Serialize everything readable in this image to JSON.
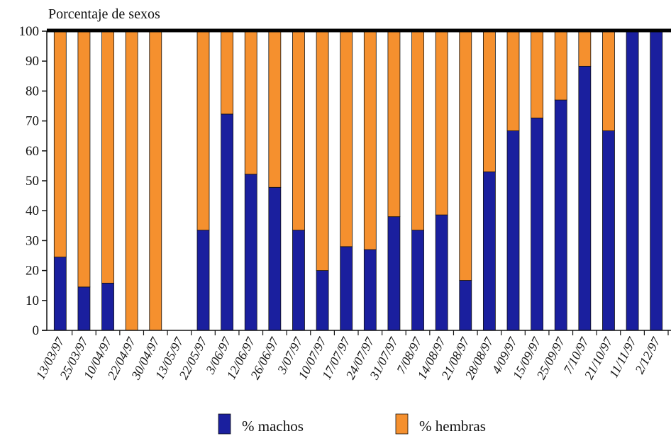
{
  "chart_data": {
    "type": "bar",
    "stacked": true,
    "ylabel": "Porcentaje de sexos",
    "ylim": [
      0,
      100
    ],
    "yticks": [
      0,
      10,
      20,
      30,
      40,
      50,
      60,
      70,
      80,
      90,
      100
    ],
    "categories": [
      "13/03/97",
      "25/03/97",
      "10/04/97",
      "22/04/97",
      "30/04/97",
      "13/05/97",
      "22/05/97",
      "3/06/97",
      "12/06/97",
      "26/06/97",
      "3/07/97",
      "10/07/97",
      "17/07/97",
      "24/07/97",
      "31/07/97",
      "7/08/97",
      "14/08/97",
      "21/08/97",
      "28/08/97",
      "4/09/97",
      "15/09/97",
      "25/09/97",
      "7/10/97",
      "21/10/97",
      "11/11/97",
      "2/12/97"
    ],
    "series": [
      {
        "name": "% machos",
        "color": "#1a1f9e",
        "values": [
          24.5,
          14.5,
          15.8,
          0,
          0,
          0,
          33.5,
          72.3,
          52.2,
          47.8,
          33.5,
          20.0,
          28.0,
          27.0,
          38.0,
          33.5,
          38.6,
          16.7,
          53.0,
          66.7,
          71.0,
          77.0,
          88.3,
          66.7,
          100,
          100
        ]
      },
      {
        "name": "% hembras",
        "color": "#f5902e",
        "values": [
          75.5,
          85.5,
          84.2,
          100,
          100,
          0,
          66.5,
          27.7,
          47.8,
          52.2,
          66.5,
          80.0,
          72.0,
          73.0,
          62.0,
          66.5,
          61.4,
          83.3,
          47.0,
          33.3,
          29.0,
          23.0,
          11.7,
          33.3,
          0,
          0
        ]
      }
    ],
    "legend_position": "bottom-center",
    "grid": false
  }
}
